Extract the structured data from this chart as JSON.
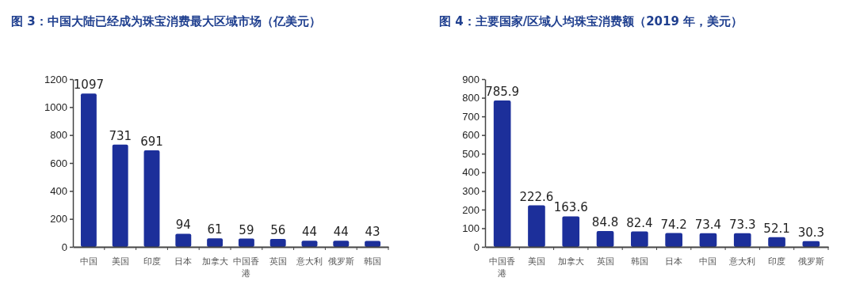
{
  "chart_data": [
    {
      "type": "bar",
      "title": "图 3：中国大陆已经成为珠宝消费最大区域市场（亿美元）",
      "categories": [
        "中国",
        "美国",
        "印度",
        "日本",
        "加拿大",
        "中国香港",
        "英国",
        "意大利",
        "俄罗斯",
        "韩国"
      ],
      "values": [
        1097,
        731,
        691,
        94,
        61,
        59,
        56,
        44,
        44,
        43
      ],
      "color": "#1c2f9a",
      "ylim": [
        0,
        1200
      ],
      "yticks": [
        0,
        200,
        400,
        600,
        800,
        1000,
        1200
      ],
      "data_labels": true
    },
    {
      "type": "bar",
      "title": "图 4：主要国家/区域人均珠宝消费额（2019 年，美元）",
      "categories": [
        "中国香港",
        "美国",
        "加拿大",
        "英国",
        "韩国",
        "日本",
        "中国",
        "意大利",
        "印度",
        "俄罗斯"
      ],
      "values": [
        785.9,
        222.6,
        163.6,
        84.8,
        82.4,
        74.2,
        73.4,
        73.3,
        52.1,
        30.3
      ],
      "color": "#1c2f9a",
      "ylim": [
        0,
        900
      ],
      "yticks": [
        0,
        100,
        200,
        300,
        400,
        500,
        600,
        700,
        800,
        900
      ],
      "data_labels": true
    }
  ]
}
